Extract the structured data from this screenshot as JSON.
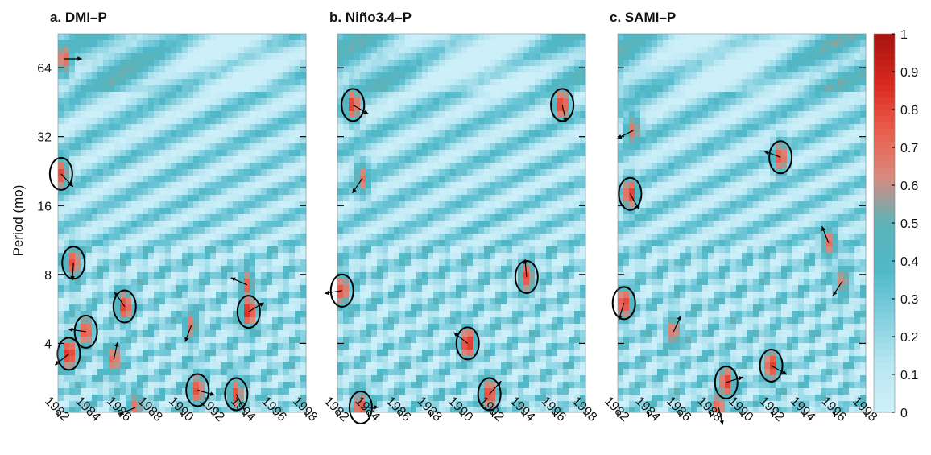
{
  "chart_data": [
    {
      "type": "heatmap",
      "title": "a. DMI–P",
      "ylabel": "Period (mo)",
      "xlim": [
        1982,
        1998
      ],
      "ylim": [
        2,
        90
      ],
      "yscale": "log2",
      "x_ticks": [
        "1982",
        "1984",
        "1986",
        "1988",
        "1990",
        "1992",
        "1994",
        "1996",
        "1998"
      ],
      "y_ticks": [
        "4",
        "8",
        "16",
        "32",
        "64"
      ],
      "hotspots": [
        {
          "x": 1982.4,
          "y": 70,
          "value": 0.75
        },
        {
          "x": 1982.2,
          "y": 22,
          "value": 0.8
        },
        {
          "x": 1983.0,
          "y": 9,
          "value": 0.8
        },
        {
          "x": 1982.7,
          "y": 3.6,
          "value": 0.9
        },
        {
          "x": 1983.8,
          "y": 4.5,
          "value": 0.8
        },
        {
          "x": 1986.3,
          "y": 5.8,
          "value": 0.85
        },
        {
          "x": 1985.6,
          "y": 3.4,
          "value": 0.75
        },
        {
          "x": 1994.3,
          "y": 5.5,
          "value": 0.9
        },
        {
          "x": 1991.0,
          "y": 2.5,
          "value": 0.8
        },
        {
          "x": 1993.5,
          "y": 2.4,
          "value": 0.8
        },
        {
          "x": 1990.6,
          "y": 4.8,
          "value": 0.7
        },
        {
          "x": 1987.0,
          "y": 2.1,
          "value": 0.7
        },
        {
          "x": 1994.2,
          "y": 7.2,
          "value": 0.75
        }
      ]
    },
    {
      "type": "heatmap",
      "title": "b. Niño3.4–P",
      "xlim": [
        1982,
        1998
      ],
      "ylim": [
        2,
        90
      ],
      "yscale": "log2",
      "x_ticks": [
        "1982",
        "1984",
        "1986",
        "1988",
        "1990",
        "1992",
        "1994",
        "1996",
        "1998"
      ],
      "y_ticks": [
        "4",
        "8",
        "16",
        "32",
        "64"
      ],
      "hotspots": [
        {
          "x": 1983.0,
          "y": 44,
          "value": 0.85
        },
        {
          "x": 1996.5,
          "y": 44,
          "value": 0.85
        },
        {
          "x": 1983.6,
          "y": 21,
          "value": 0.7
        },
        {
          "x": 1982.3,
          "y": 6.8,
          "value": 0.8
        },
        {
          "x": 1990.4,
          "y": 4.0,
          "value": 0.9
        },
        {
          "x": 1994.2,
          "y": 7.8,
          "value": 0.8
        },
        {
          "x": 1991.8,
          "y": 2.4,
          "value": 0.85
        },
        {
          "x": 1983.5,
          "y": 2.1,
          "value": 0.8
        }
      ]
    },
    {
      "type": "heatmap",
      "title": "c. SAMI–P",
      "xlim": [
        1982,
        1998
      ],
      "ylim": [
        2,
        90
      ],
      "yscale": "log2",
      "x_ticks": [
        "1982",
        "1984",
        "1986",
        "1988",
        "1990",
        "1992",
        "1994",
        "1996",
        "1998"
      ],
      "y_ticks": [
        "4",
        "8",
        "16",
        "32",
        "64"
      ],
      "hotspots": [
        {
          "x": 1982.8,
          "y": 18,
          "value": 0.85
        },
        {
          "x": 1982.4,
          "y": 6.0,
          "value": 0.85
        },
        {
          "x": 1983.0,
          "y": 34,
          "value": 0.7
        },
        {
          "x": 1992.5,
          "y": 26,
          "value": 0.8
        },
        {
          "x": 1995.6,
          "y": 11,
          "value": 0.7
        },
        {
          "x": 1985.6,
          "y": 4.5,
          "value": 0.7
        },
        {
          "x": 1989.0,
          "y": 2.7,
          "value": 0.85
        },
        {
          "x": 1991.9,
          "y": 3.2,
          "value": 0.85
        },
        {
          "x": 1988.5,
          "y": 2.1,
          "value": 0.75
        },
        {
          "x": 1996.5,
          "y": 7.5,
          "value": 0.65
        }
      ]
    }
  ],
  "colorbar": {
    "ticks": [
      "0",
      "0.1",
      "0.2",
      "0.3",
      "0.4",
      "0.5",
      "0.6",
      "0.7",
      "0.8",
      "0.9",
      "1"
    ],
    "colors": [
      "#cdeff9",
      "#b7e6f1",
      "#82cfdf",
      "#4fb8c8",
      "#5cb3b8",
      "#d88a7e",
      "#ea5d4c",
      "#d8291f",
      "#aa1512"
    ]
  }
}
